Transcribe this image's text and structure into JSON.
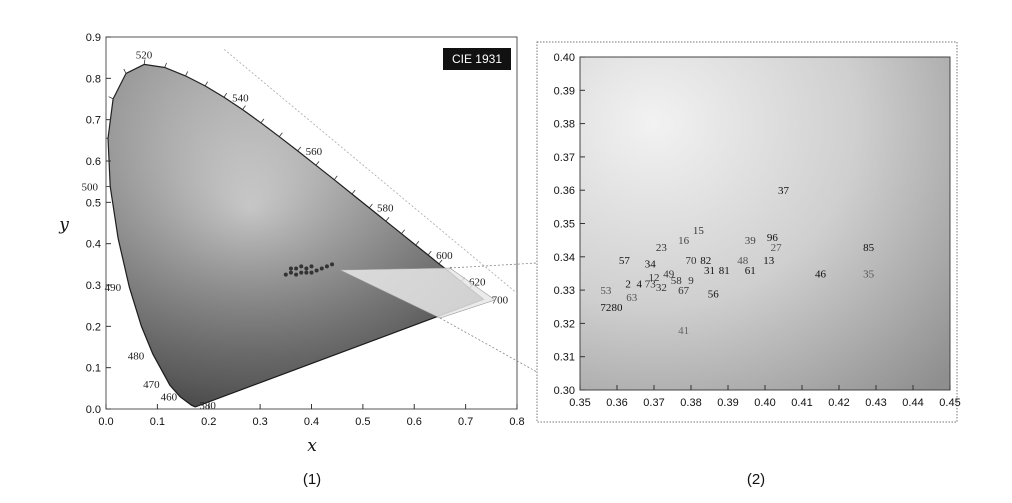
{
  "chart_data": [
    {
      "type": "scatter",
      "badge": "CIE 1931",
      "xlabel": "x",
      "ylabel": "y",
      "caption": "(1)",
      "xlim": [
        0.0,
        0.8
      ],
      "ylim": [
        0.0,
        0.9
      ],
      "x_ticks": [
        "0.0",
        "0.1",
        "0.2",
        "0.3",
        "0.4",
        "0.5",
        "0.6",
        "0.7",
        "0.8"
      ],
      "y_ticks": [
        "0.0",
        "0.1",
        "0.2",
        "0.3",
        "0.4",
        "0.5",
        "0.6",
        "0.7",
        "0.8",
        "0.9"
      ],
      "locus_labels": [
        {
          "text": "460",
          "x": 0.15,
          "y": 0.025
        },
        {
          "text": "470",
          "x": 0.12,
          "y": 0.06
        },
        {
          "text": "480",
          "x": 0.09,
          "y": 0.13
        },
        {
          "text": "490",
          "x": 0.045,
          "y": 0.295
        },
        {
          "text": "500",
          "x": 0.0,
          "y": 0.538
        },
        {
          "text": "520",
          "x": 0.074,
          "y": 0.834
        },
        {
          "text": "540",
          "x": 0.23,
          "y": 0.754
        },
        {
          "text": "560",
          "x": 0.373,
          "y": 0.624
        },
        {
          "text": "580",
          "x": 0.512,
          "y": 0.487
        },
        {
          "text": "600",
          "x": 0.627,
          "y": 0.372
        },
        {
          "text": "620",
          "x": 0.691,
          "y": 0.308
        },
        {
          "text": "700",
          "x": 0.735,
          "y": 0.265
        },
        {
          "text": "380",
          "x": 0.174,
          "y": 0.005
        }
      ],
      "cluster": [
        [
          0.36,
          0.33
        ],
        [
          0.37,
          0.34
        ],
        [
          0.38,
          0.33
        ],
        [
          0.39,
          0.34
        ],
        [
          0.4,
          0.345
        ],
        [
          0.41,
          0.335
        ],
        [
          0.36,
          0.34
        ],
        [
          0.37,
          0.325
        ],
        [
          0.38,
          0.345
        ],
        [
          0.39,
          0.33
        ],
        [
          0.4,
          0.33
        ],
        [
          0.42,
          0.34
        ],
        [
          0.35,
          0.325
        ],
        [
          0.43,
          0.345
        ],
        [
          0.44,
          0.35
        ]
      ]
    },
    {
      "type": "scatter",
      "caption": "(2)",
      "xlim": [
        0.35,
        0.45
      ],
      "ylim": [
        0.3,
        0.4
      ],
      "x_ticks": [
        "0.35",
        "0.36",
        "0.37",
        "0.38",
        "0.39",
        "0.40",
        "0.41",
        "0.42",
        "0.43",
        "0.44",
        "0.45"
      ],
      "y_ticks": [
        "0.30",
        "0.31",
        "0.32",
        "0.33",
        "0.34",
        "0.35",
        "0.36",
        "0.37",
        "0.38",
        "0.39",
        "0.40"
      ],
      "points": [
        {
          "label": "37",
          "x": 0.405,
          "y": 0.36,
          "c": "#111"
        },
        {
          "label": "15",
          "x": 0.382,
          "y": 0.348,
          "c": "#333"
        },
        {
          "label": "39",
          "x": 0.396,
          "y": 0.345,
          "c": "#444"
        },
        {
          "label": "96",
          "x": 0.402,
          "y": 0.346,
          "c": "#111"
        },
        {
          "label": "27",
          "x": 0.403,
          "y": 0.343,
          "c": "#555"
        },
        {
          "label": "85",
          "x": 0.428,
          "y": 0.343,
          "c": "#111"
        },
        {
          "label": "23",
          "x": 0.372,
          "y": 0.343,
          "c": "#333"
        },
        {
          "label": "16",
          "x": 0.378,
          "y": 0.345,
          "c": "#444"
        },
        {
          "label": "57",
          "x": 0.362,
          "y": 0.339,
          "c": "#111"
        },
        {
          "label": "34",
          "x": 0.369,
          "y": 0.338,
          "c": "#111"
        },
        {
          "label": "70",
          "x": 0.38,
          "y": 0.339,
          "c": "#333"
        },
        {
          "label": "82",
          "x": 0.384,
          "y": 0.339,
          "c": "#111"
        },
        {
          "label": "13",
          "x": 0.401,
          "y": 0.339,
          "c": "#111"
        },
        {
          "label": "48",
          "x": 0.394,
          "y": 0.339,
          "c": "#555"
        },
        {
          "label": "49",
          "x": 0.374,
          "y": 0.335,
          "c": "#333"
        },
        {
          "label": "31",
          "x": 0.385,
          "y": 0.336,
          "c": "#111"
        },
        {
          "label": "81",
          "x": 0.389,
          "y": 0.336,
          "c": "#111"
        },
        {
          "label": "61",
          "x": 0.396,
          "y": 0.336,
          "c": "#111"
        },
        {
          "label": "46",
          "x": 0.415,
          "y": 0.335,
          "c": "#111"
        },
        {
          "label": "35",
          "x": 0.428,
          "y": 0.335,
          "c": "#555"
        },
        {
          "label": "12",
          "x": 0.37,
          "y": 0.334,
          "c": "#333"
        },
        {
          "label": "58",
          "x": 0.376,
          "y": 0.333,
          "c": "#333"
        },
        {
          "label": "9",
          "x": 0.38,
          "y": 0.333,
          "c": "#333"
        },
        {
          "label": "2",
          "x": 0.363,
          "y": 0.332,
          "c": "#111"
        },
        {
          "label": "4",
          "x": 0.366,
          "y": 0.332,
          "c": "#111"
        },
        {
          "label": "73",
          "x": 0.369,
          "y": 0.332,
          "c": "#333"
        },
        {
          "label": "32",
          "x": 0.372,
          "y": 0.331,
          "c": "#333"
        },
        {
          "label": "67",
          "x": 0.378,
          "y": 0.33,
          "c": "#333"
        },
        {
          "label": "56",
          "x": 0.386,
          "y": 0.329,
          "c": "#111"
        },
        {
          "label": "53",
          "x": 0.357,
          "y": 0.33,
          "c": "#555"
        },
        {
          "label": "63",
          "x": 0.364,
          "y": 0.328,
          "c": "#555"
        },
        {
          "label": "72",
          "x": 0.357,
          "y": 0.325,
          "c": "#111"
        },
        {
          "label": "80",
          "x": 0.36,
          "y": 0.325,
          "c": "#111"
        },
        {
          "label": "41",
          "x": 0.378,
          "y": 0.318,
          "c": "#666"
        }
      ]
    }
  ]
}
